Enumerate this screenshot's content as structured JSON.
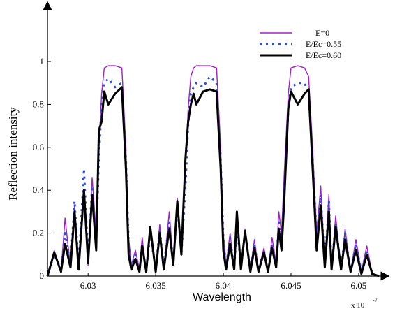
{
  "chart_data": {
    "type": "line",
    "title": "",
    "xlabel": "Wavelength",
    "ylabel": "Reflection intensity",
    "x_multiplier_label": "x 10",
    "x_multiplier_exp": "-7",
    "xlim": [
      6.027,
      6.0515
    ],
    "ylim": [
      0,
      1
    ],
    "x_ticks": [
      "6.03",
      "6.035",
      "6.04",
      "6.045",
      "6.05"
    ],
    "x_tick_values": [
      6.03,
      6.035,
      6.04,
      6.045,
      6.05
    ],
    "y_ticks": [
      "0",
      "0.2",
      "0.4",
      "0.6",
      "0.8",
      "1"
    ],
    "y_tick_values": [
      0,
      0.2,
      0.4,
      0.6,
      0.8,
      1.0
    ],
    "legend_position": "top-right",
    "series": [
      {
        "name": "E=0",
        "style": "line",
        "color": "#a020c8",
        "x": [
          6.027,
          6.0275,
          6.028,
          6.0283,
          6.0287,
          6.029,
          6.0293,
          6.0297,
          6.03,
          6.0303,
          6.0306,
          6.0308,
          6.031,
          6.0312,
          6.0315,
          6.032,
          6.0325,
          6.0328,
          6.033,
          6.0332,
          6.0335,
          6.0338,
          6.034,
          6.0343,
          6.0346,
          6.035,
          6.0353,
          6.0356,
          6.036,
          6.0363,
          6.0366,
          6.0369,
          6.0372,
          6.0374,
          6.0376,
          6.0378,
          6.038,
          6.0385,
          6.039,
          6.0395,
          6.0398,
          6.04,
          6.0402,
          6.0405,
          6.0408,
          6.041,
          6.0413,
          6.0416,
          6.042,
          6.0423,
          6.0426,
          6.043,
          6.0433,
          6.0436,
          6.0439,
          6.0441,
          6.0443,
          6.0445,
          6.0448,
          6.045,
          6.0455,
          6.046,
          6.0463,
          6.0466,
          6.0469,
          6.0472,
          6.0475,
          6.0478,
          6.048,
          6.0483,
          6.0487,
          6.049,
          6.0494,
          6.0498,
          6.0502,
          6.0506,
          6.051,
          6.0515
        ],
        "y": [
          0.0,
          0.12,
          0.02,
          0.27,
          0.04,
          0.33,
          0.03,
          0.37,
          0.05,
          0.46,
          0.2,
          0.6,
          0.85,
          0.97,
          0.98,
          0.98,
          0.97,
          0.6,
          0.18,
          0.05,
          0.12,
          0.03,
          0.18,
          0.02,
          0.21,
          0.02,
          0.24,
          0.03,
          0.3,
          0.06,
          0.36,
          0.12,
          0.5,
          0.78,
          0.93,
          0.97,
          0.98,
          0.98,
          0.98,
          0.97,
          0.6,
          0.2,
          0.05,
          0.2,
          0.03,
          0.28,
          0.04,
          0.22,
          0.03,
          0.17,
          0.03,
          0.13,
          0.02,
          0.18,
          0.06,
          0.3,
          0.2,
          0.48,
          0.85,
          0.97,
          0.98,
          0.97,
          0.93,
          0.6,
          0.2,
          0.42,
          0.05,
          0.38,
          0.04,
          0.28,
          0.03,
          0.22,
          0.02,
          0.17,
          0.02,
          0.14,
          0.01,
          0.0
        ]
      },
      {
        "name": "E/Ec=0.55",
        "style": "dotted",
        "color": "#2a4fd8",
        "x": [
          6.027,
          6.0275,
          6.028,
          6.0283,
          6.0287,
          6.029,
          6.0293,
          6.0297,
          6.03,
          6.0303,
          6.0306,
          6.0308,
          6.031,
          6.0312,
          6.0315,
          6.032,
          6.0325,
          6.0328,
          6.033,
          6.0332,
          6.0335,
          6.0338,
          6.034,
          6.0343,
          6.0346,
          6.035,
          6.0353,
          6.0356,
          6.036,
          6.0363,
          6.0366,
          6.0369,
          6.0372,
          6.0374,
          6.0376,
          6.0378,
          6.038,
          6.0385,
          6.039,
          6.0395,
          6.0398,
          6.04,
          6.0402,
          6.0405,
          6.0408,
          6.041,
          6.0413,
          6.0416,
          6.042,
          6.0423,
          6.0426,
          6.043,
          6.0433,
          6.0436,
          6.0439,
          6.0441,
          6.0443,
          6.0445,
          6.0448,
          6.045,
          6.0455,
          6.046,
          6.0463,
          6.0466,
          6.0469,
          6.0472,
          6.0475,
          6.0478,
          6.048,
          6.0483,
          6.0487,
          6.049,
          6.0494,
          6.0498,
          6.0502,
          6.0506,
          6.051,
          6.0515
        ],
        "y": [
          0.0,
          0.1,
          0.03,
          0.2,
          0.05,
          0.35,
          0.04,
          0.5,
          0.08,
          0.42,
          0.15,
          0.55,
          0.8,
          0.9,
          0.92,
          0.88,
          0.9,
          0.55,
          0.15,
          0.04,
          0.1,
          0.03,
          0.15,
          0.02,
          0.2,
          0.03,
          0.22,
          0.04,
          0.25,
          0.06,
          0.33,
          0.1,
          0.42,
          0.7,
          0.85,
          0.88,
          0.9,
          0.88,
          0.93,
          0.9,
          0.55,
          0.18,
          0.04,
          0.18,
          0.03,
          0.25,
          0.04,
          0.2,
          0.03,
          0.15,
          0.03,
          0.12,
          0.02,
          0.15,
          0.05,
          0.25,
          0.15,
          0.4,
          0.78,
          0.88,
          0.9,
          0.9,
          0.85,
          0.55,
          0.18,
          0.38,
          0.05,
          0.35,
          0.04,
          0.25,
          0.03,
          0.2,
          0.02,
          0.15,
          0.02,
          0.12,
          0.01,
          0.0
        ]
      },
      {
        "name": "E/Ec=0.60",
        "style": "line-thick",
        "color": "#000000",
        "x": [
          6.027,
          6.0275,
          6.028,
          6.0283,
          6.0287,
          6.029,
          6.0293,
          6.0297,
          6.03,
          6.0303,
          6.0306,
          6.0308,
          6.031,
          6.0312,
          6.0315,
          6.032,
          6.0325,
          6.0328,
          6.033,
          6.0332,
          6.0335,
          6.0338,
          6.034,
          6.0343,
          6.0346,
          6.035,
          6.0353,
          6.0356,
          6.036,
          6.0363,
          6.0366,
          6.0369,
          6.0372,
          6.0374,
          6.0376,
          6.0378,
          6.038,
          6.0385,
          6.039,
          6.0395,
          6.0398,
          6.04,
          6.0402,
          6.0405,
          6.0408,
          6.041,
          6.0413,
          6.0416,
          6.042,
          6.0423,
          6.0426,
          6.043,
          6.0433,
          6.0436,
          6.0439,
          6.0441,
          6.0443,
          6.0445,
          6.0448,
          6.045,
          6.0455,
          6.046,
          6.0463,
          6.0466,
          6.0469,
          6.0472,
          6.0475,
          6.0478,
          6.048,
          6.0483,
          6.0487,
          6.049,
          6.0494,
          6.0498,
          6.0502,
          6.0506,
          6.051,
          6.0515
        ],
        "y": [
          0.0,
          0.11,
          0.02,
          0.15,
          0.04,
          0.3,
          0.03,
          0.4,
          0.06,
          0.38,
          0.12,
          0.68,
          0.72,
          0.86,
          0.8,
          0.85,
          0.88,
          0.5,
          0.1,
          0.03,
          0.08,
          0.02,
          0.14,
          0.02,
          0.23,
          0.02,
          0.2,
          0.03,
          0.22,
          0.05,
          0.35,
          0.1,
          0.55,
          0.72,
          0.8,
          0.85,
          0.8,
          0.86,
          0.87,
          0.86,
          0.5,
          0.12,
          0.03,
          0.15,
          0.03,
          0.3,
          0.03,
          0.21,
          0.02,
          0.13,
          0.02,
          0.11,
          0.02,
          0.13,
          0.04,
          0.22,
          0.12,
          0.35,
          0.78,
          0.86,
          0.8,
          0.85,
          0.87,
          0.5,
          0.12,
          0.33,
          0.04,
          0.3,
          0.03,
          0.23,
          0.03,
          0.17,
          0.02,
          0.12,
          0.01,
          0.1,
          0.01,
          0.0
        ]
      }
    ]
  }
}
